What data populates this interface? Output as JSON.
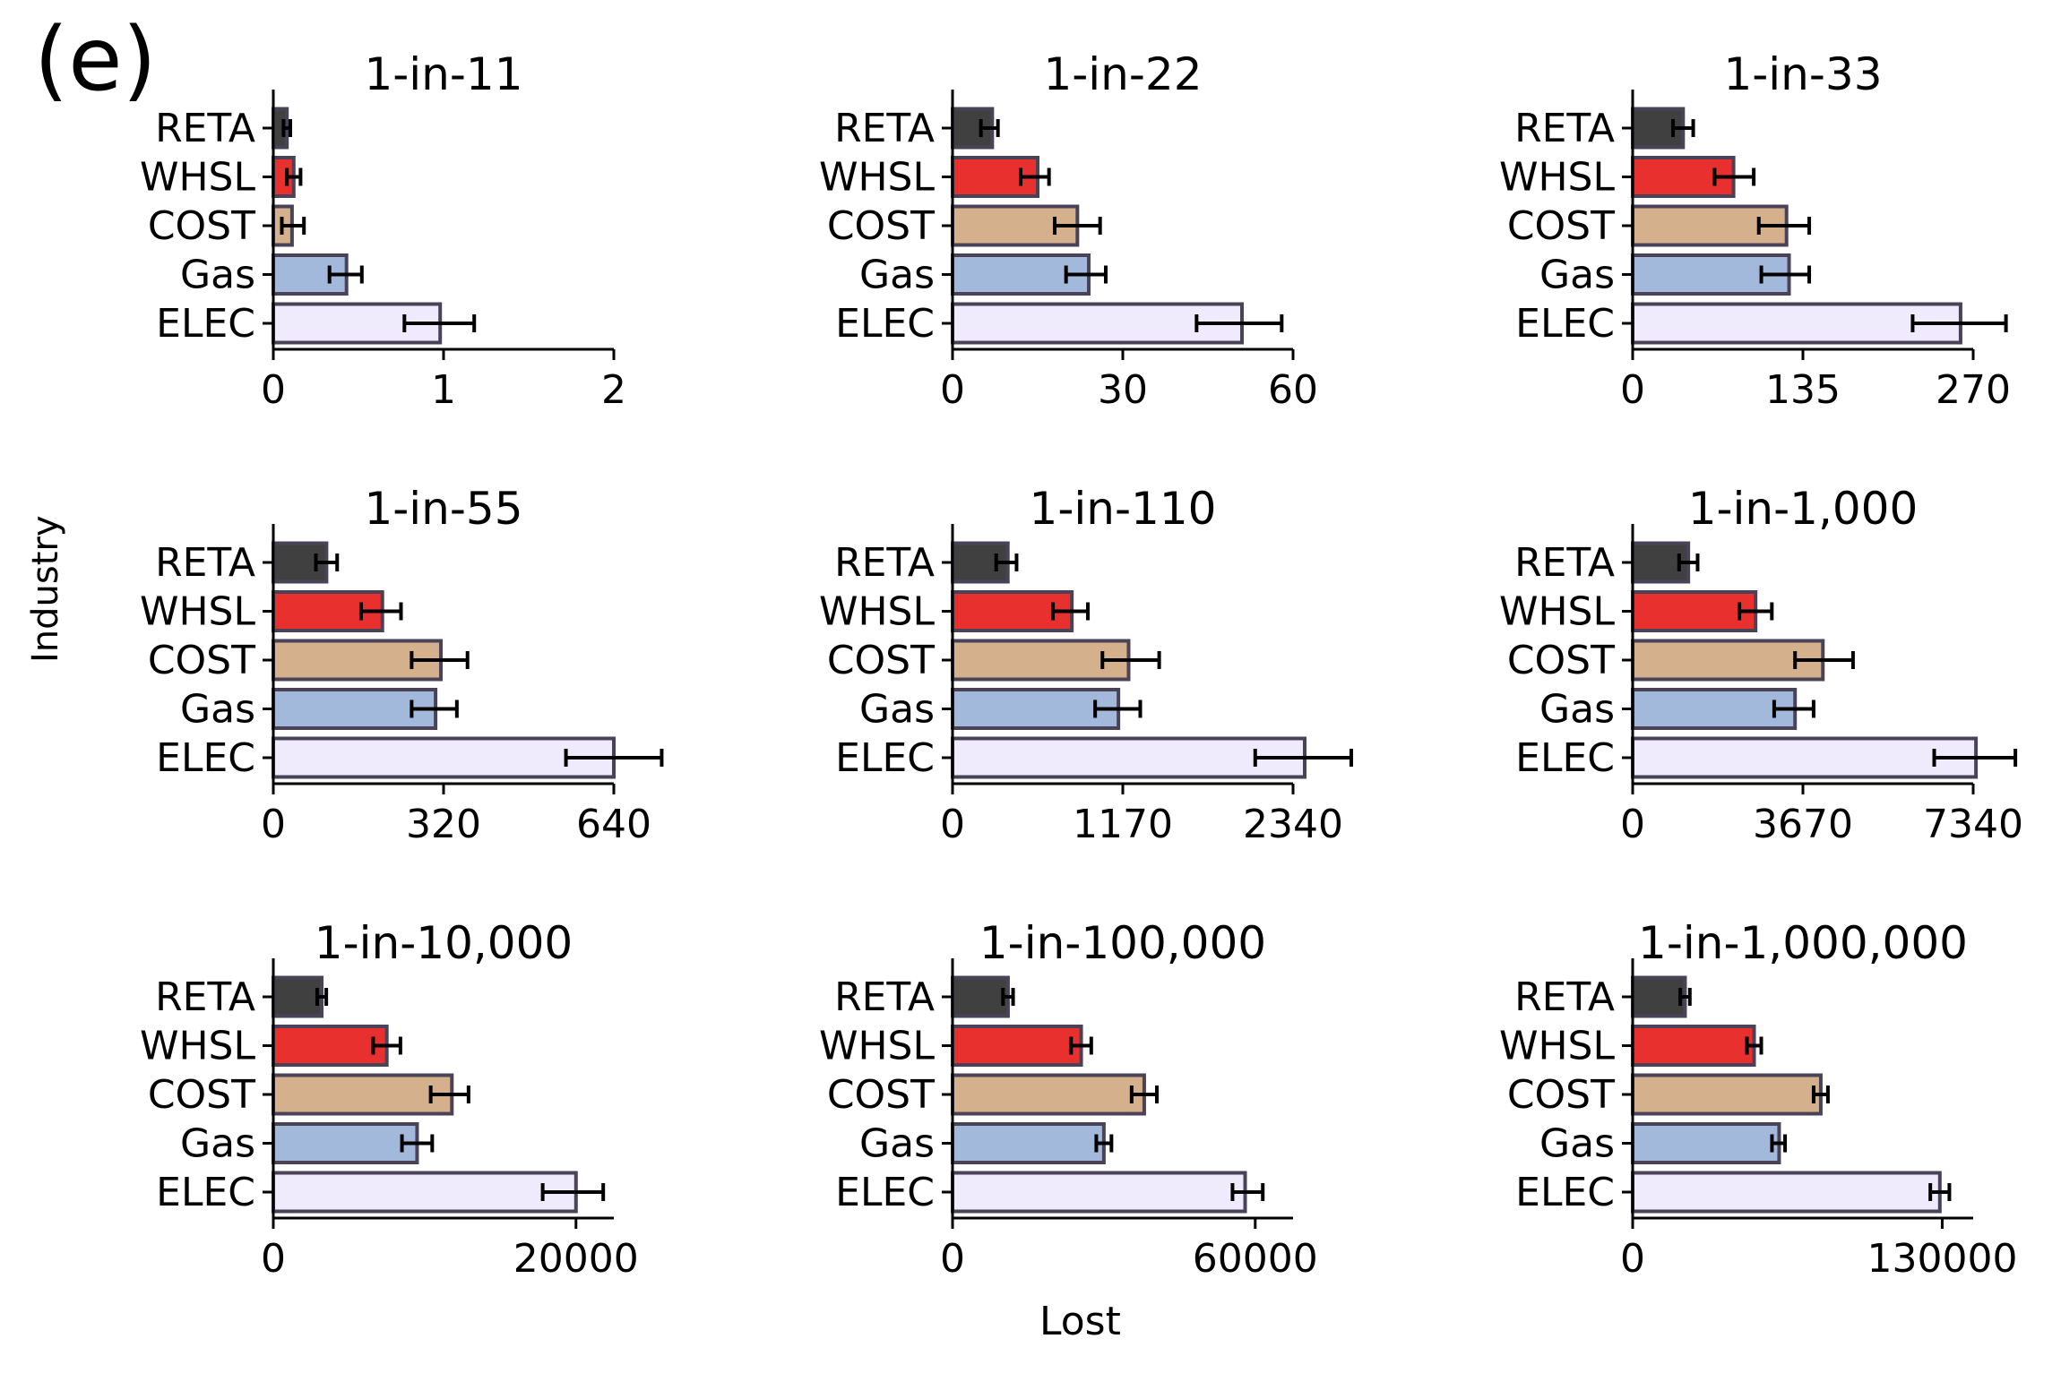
{
  "figure": {
    "panel_label": "(e)",
    "ylabel": "Industry",
    "xlabel": "Lost"
  },
  "colors": {
    "RETA": "#404040",
    "WHSL": "#e8302e",
    "COST": "#d4b08c",
    "Gas": "#a3b9dc",
    "ELEC": "#efebfd",
    "edge": "#4a4358"
  },
  "chart_data": [
    {
      "type": "bar",
      "orientation": "horizontal",
      "title": "1-in-11",
      "categories": [
        "RETA",
        "WHSL",
        "COST",
        "Gas",
        "ELEC"
      ],
      "values": [
        0.08,
        0.12,
        0.11,
        0.43,
        0.98
      ],
      "errors": [
        [
          0.06,
          0.1
        ],
        [
          0.08,
          0.16
        ],
        [
          0.05,
          0.18
        ],
        [
          0.33,
          0.52
        ],
        [
          0.77,
          1.18
        ]
      ],
      "xlim": [
        0,
        2
      ],
      "xticks": [
        0,
        1,
        2
      ],
      "xtick_labels": [
        "0",
        "1",
        "2"
      ]
    },
    {
      "type": "bar",
      "orientation": "horizontal",
      "title": "1-in-22",
      "categories": [
        "RETA",
        "WHSL",
        "COST",
        "Gas",
        "ELEC"
      ],
      "values": [
        7,
        15,
        22,
        24,
        51
      ],
      "errors": [
        [
          5,
          8
        ],
        [
          12,
          17
        ],
        [
          18,
          26
        ],
        [
          20,
          27
        ],
        [
          43,
          58
        ]
      ],
      "xlim": [
        0,
        60
      ],
      "xticks": [
        0,
        30,
        60
      ],
      "xtick_labels": [
        "0",
        "30",
        "60"
      ]
    },
    {
      "type": "bar",
      "orientation": "horizontal",
      "title": "1-in-33",
      "categories": [
        "RETA",
        "WHSL",
        "COST",
        "Gas",
        "ELEC"
      ],
      "values": [
        40,
        80,
        122,
        124,
        260
      ],
      "errors": [
        [
          32,
          48
        ],
        [
          65,
          96
        ],
        [
          100,
          140
        ],
        [
          102,
          140
        ],
        [
          222,
          296
        ]
      ],
      "xlim": [
        0,
        270
      ],
      "xticks": [
        0,
        135,
        270
      ],
      "xtick_labels": [
        "0",
        "135",
        "270"
      ]
    },
    {
      "type": "bar",
      "orientation": "horizontal",
      "title": "1-in-55",
      "categories": [
        "RETA",
        "WHSL",
        "COST",
        "Gas",
        "ELEC"
      ],
      "values": [
        100,
        205,
        315,
        305,
        640
      ],
      "errors": [
        [
          80,
          120
        ],
        [
          165,
          240
        ],
        [
          260,
          365
        ],
        [
          260,
          345
        ],
        [
          550,
          730
        ]
      ],
      "xlim": [
        0,
        640
      ],
      "xticks": [
        0,
        320,
        640
      ],
      "xtick_labels": [
        "0",
        "320",
        "640"
      ]
    },
    {
      "type": "bar",
      "orientation": "horizontal",
      "title": "1-in-110",
      "categories": [
        "RETA",
        "WHSL",
        "COST",
        "Gas",
        "ELEC"
      ],
      "values": [
        380,
        820,
        1210,
        1140,
        2420
      ],
      "errors": [
        [
          300,
          440
        ],
        [
          690,
          930
        ],
        [
          1030,
          1420
        ],
        [
          980,
          1290
        ],
        [
          2080,
          2740
        ]
      ],
      "xlim": [
        0,
        2340
      ],
      "xticks": [
        0,
        1170,
        2340
      ],
      "xtick_labels": [
        "0",
        "1170",
        "2340"
      ]
    },
    {
      "type": "bar",
      "orientation": "horizontal",
      "title": "1-in-1,000",
      "categories": [
        "RETA",
        "WHSL",
        "COST",
        "Gas",
        "ELEC"
      ],
      "values": [
        1200,
        2650,
        4100,
        3500,
        7400
      ],
      "errors": [
        [
          1000,
          1400
        ],
        [
          2300,
          3000
        ],
        [
          3500,
          4750
        ],
        [
          3050,
          3900
        ],
        [
          6500,
          8250
        ]
      ],
      "xlim": [
        0,
        7340
      ],
      "xticks": [
        0,
        3670,
        7340
      ],
      "xtick_labels": [
        "0",
        "3670",
        "7340"
      ]
    },
    {
      "type": "bar",
      "orientation": "horizontal",
      "title": "1-in-10,000",
      "categories": [
        "RETA",
        "WHSL",
        "COST",
        "Gas",
        "ELEC"
      ],
      "values": [
        3200,
        7500,
        11800,
        9500,
        20000
      ],
      "errors": [
        [
          2900,
          3500
        ],
        [
          6600,
          8400
        ],
        [
          10400,
          12900
        ],
        [
          8500,
          10500
        ],
        [
          17800,
          21800
        ]
      ],
      "xlim": [
        0,
        22500
      ],
      "xticks": [
        0,
        20000
      ],
      "xtick_labels": [
        "0",
        "20000"
      ]
    },
    {
      "type": "bar",
      "orientation": "horizontal",
      "title": "1-in-100,000",
      "categories": [
        "RETA",
        "WHSL",
        "COST",
        "Gas",
        "ELEC"
      ],
      "values": [
        11000,
        25500,
        38000,
        30000,
        58000
      ],
      "errors": [
        [
          10000,
          12000
        ],
        [
          23500,
          27500
        ],
        [
          35500,
          40500
        ],
        [
          28500,
          31500
        ],
        [
          55500,
          61500
        ]
      ],
      "xlim": [
        0,
        67500
      ],
      "xticks": [
        0,
        60000
      ],
      "xtick_labels": [
        "0",
        "60000"
      ]
    },
    {
      "type": "bar",
      "orientation": "horizontal",
      "title": "1-in-1,000,000",
      "categories": [
        "RETA",
        "WHSL",
        "COST",
        "Gas",
        "ELEC"
      ],
      "values": [
        22000,
        51000,
        79000,
        61500,
        129000
      ],
      "errors": [
        [
          20000,
          24000
        ],
        [
          48000,
          54000
        ],
        [
          76000,
          82000
        ],
        [
          58500,
          64000
        ],
        [
          125000,
          133000
        ]
      ],
      "xlim": [
        0,
        143000
      ],
      "xticks": [
        0,
        130000
      ],
      "xtick_labels": [
        "0",
        "130000"
      ]
    }
  ]
}
